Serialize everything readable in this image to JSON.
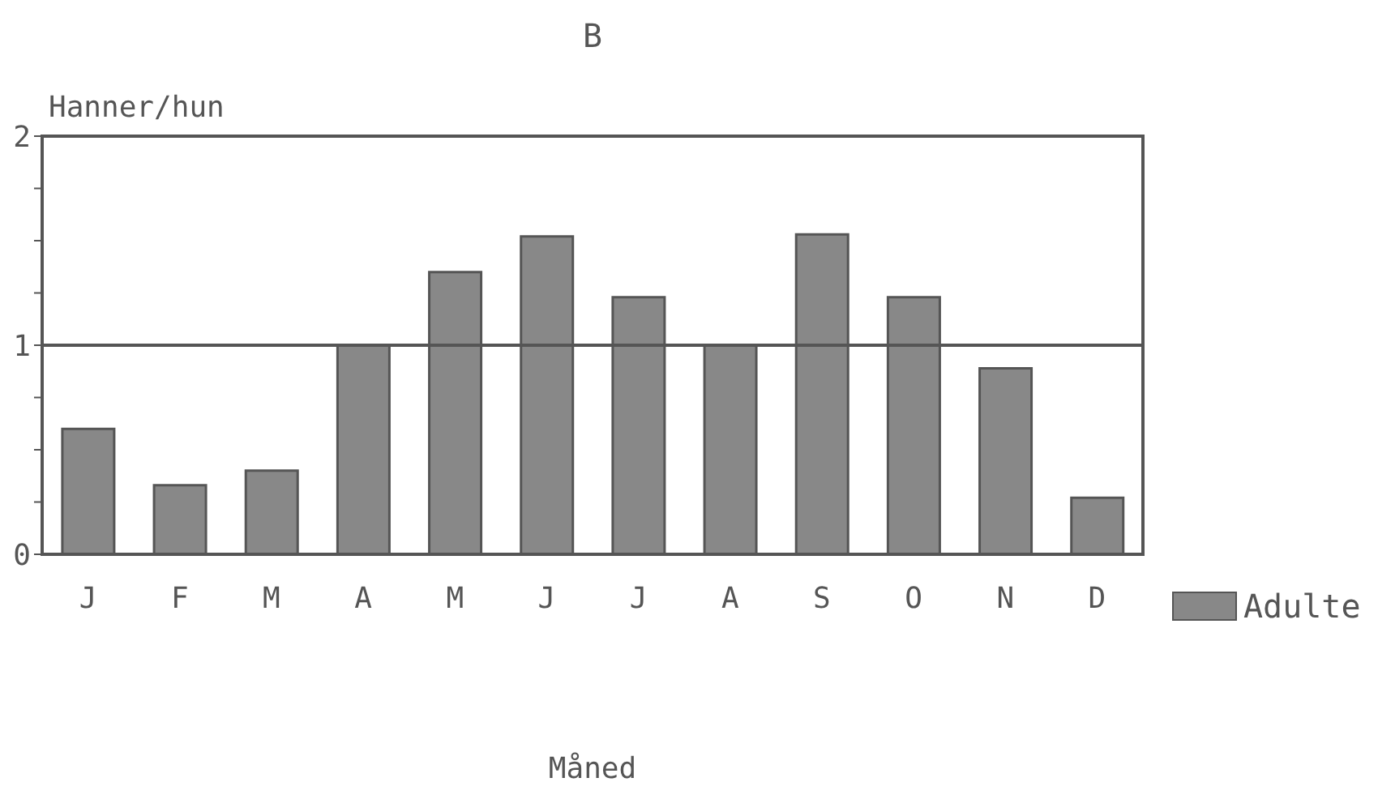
{
  "chart_data": {
    "type": "bar",
    "title": "B",
    "xlabel": "Måned",
    "ylabel": "Hanner/hun",
    "categories": [
      "J",
      "F",
      "M",
      "A",
      "M",
      "J",
      "J",
      "A",
      "S",
      "O",
      "N",
      "D"
    ],
    "series": [
      {
        "name": "Adulte",
        "color": "#888888",
        "values": [
          0.6,
          0.33,
          0.4,
          1.0,
          1.35,
          1.52,
          1.23,
          1.0,
          1.53,
          1.23,
          0.89,
          0.27
        ]
      }
    ],
    "ylim": [
      0,
      2
    ],
    "yticks": [
      0,
      {
        "value": 0.25,
        "label": null
      },
      {
        "value": 0.5,
        "label": null
      },
      {
        "value": 0.75,
        "label": null
      },
      1,
      {
        "value": 1.25,
        "label": null
      },
      {
        "value": 1.5,
        "label": null
      },
      {
        "value": 1.75,
        "label": null
      },
      2
    ],
    "ref_lines": [
      {
        "axis": "y",
        "value": 1,
        "color": "#555555"
      }
    ],
    "legend": "right",
    "grid": false
  }
}
